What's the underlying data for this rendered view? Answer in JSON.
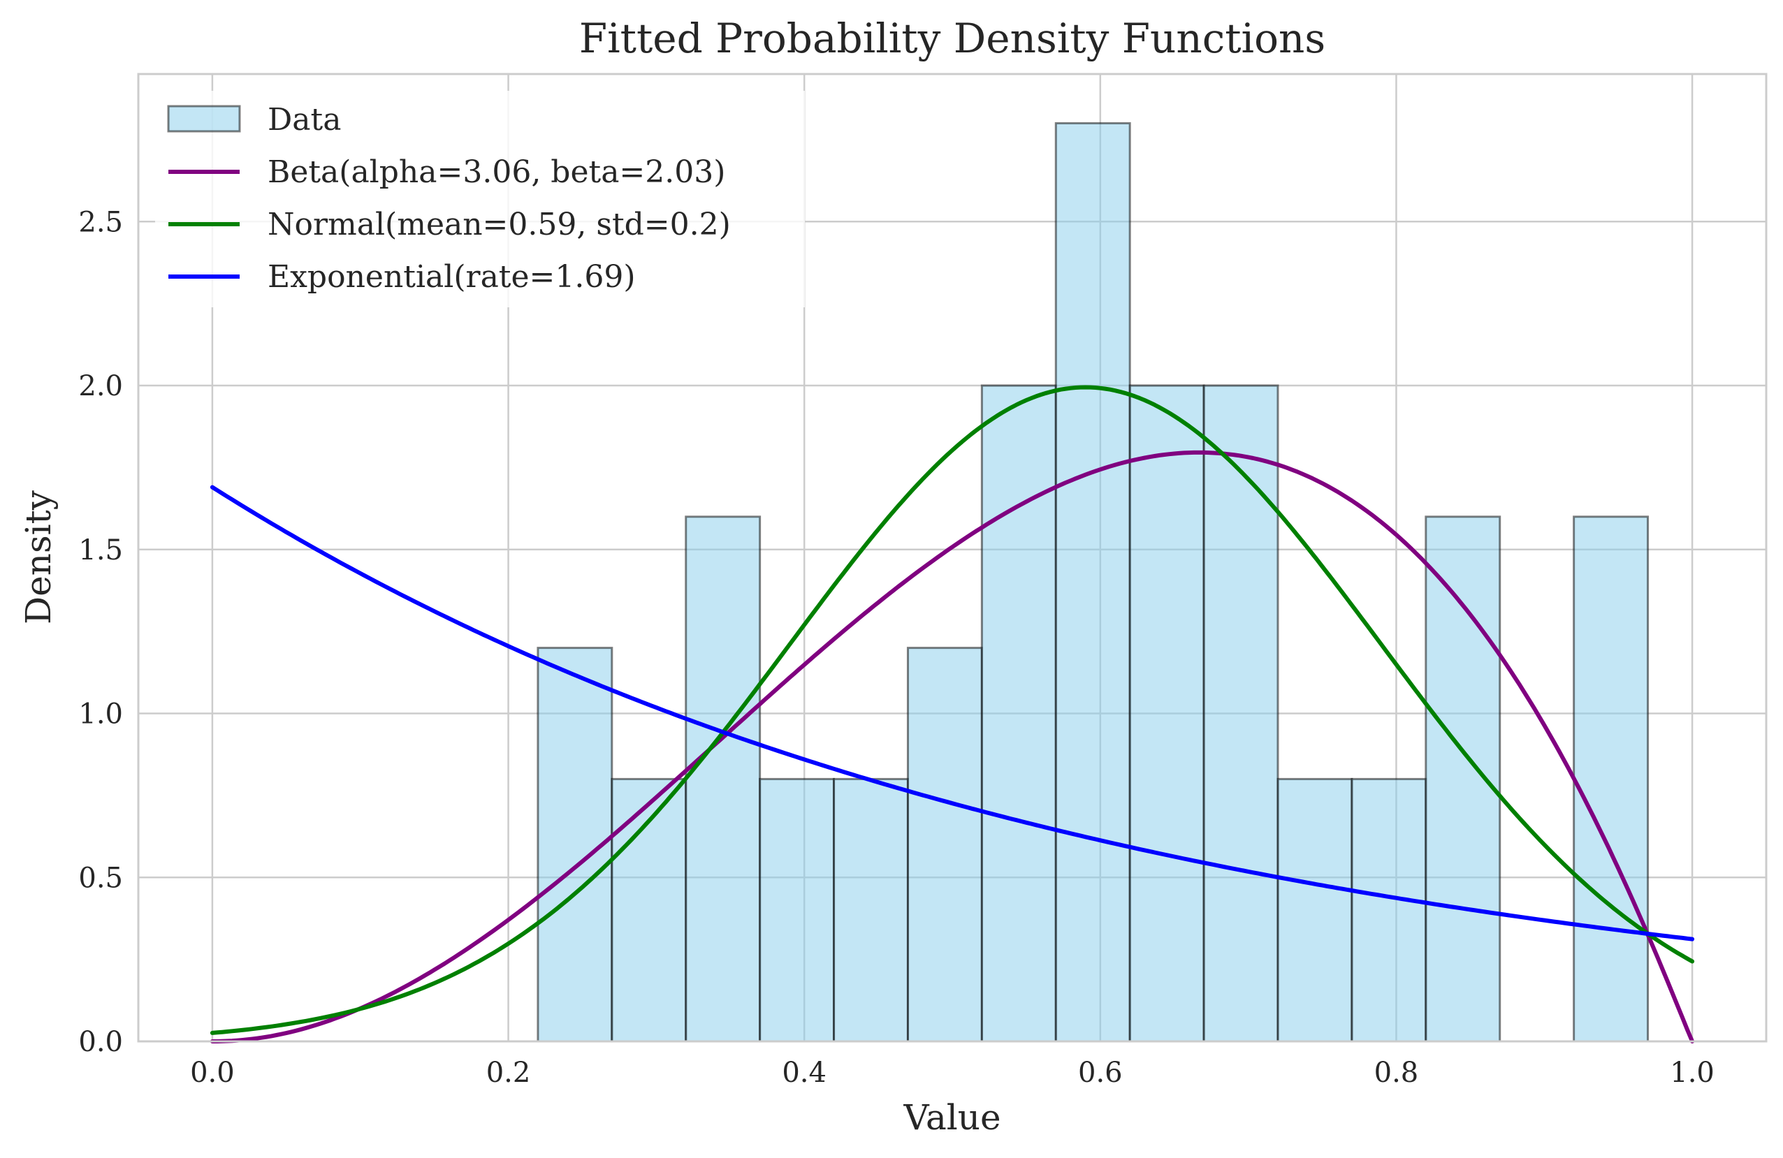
{
  "chart_data": {
    "type": "histogram+line",
    "title": "Fitted Probability Density Functions",
    "xlabel": "Value",
    "ylabel": "Density",
    "xlim": [
      -0.05,
      1.05
    ],
    "ylim": [
      0,
      2.95
    ],
    "xticks": [
      "0.0",
      "0.2",
      "0.4",
      "0.6",
      "0.8",
      "1.0"
    ],
    "xtick_values": [
      0.0,
      0.2,
      0.4,
      0.6,
      0.8,
      1.0
    ],
    "yticks": [
      "0.0",
      "0.5",
      "1.0",
      "1.5",
      "2.0",
      "2.5"
    ],
    "ytick_values": [
      0.0,
      0.5,
      1.0,
      1.5,
      2.0,
      2.5
    ],
    "grid": true,
    "legend_position": "top-left",
    "histogram": {
      "name": "Data",
      "color": "#87CEEB",
      "bins": [
        {
          "x0": 0.22,
          "x1": 0.27,
          "density": 1.2
        },
        {
          "x0": 0.27,
          "x1": 0.32,
          "density": 0.8
        },
        {
          "x0": 0.32,
          "x1": 0.37,
          "density": 1.6
        },
        {
          "x0": 0.37,
          "x1": 0.42,
          "density": 0.8
        },
        {
          "x0": 0.42,
          "x1": 0.47,
          "density": 0.8
        },
        {
          "x0": 0.47,
          "x1": 0.52,
          "density": 1.2
        },
        {
          "x0": 0.52,
          "x1": 0.57,
          "density": 2.0
        },
        {
          "x0": 0.57,
          "x1": 0.62,
          "density": 2.8
        },
        {
          "x0": 0.62,
          "x1": 0.67,
          "density": 2.0
        },
        {
          "x0": 0.67,
          "x1": 0.72,
          "density": 2.0
        },
        {
          "x0": 0.72,
          "x1": 0.77,
          "density": 0.8
        },
        {
          "x0": 0.77,
          "x1": 0.82,
          "density": 0.8
        },
        {
          "x0": 0.82,
          "x1": 0.87,
          "density": 1.6
        },
        {
          "x0": 0.87,
          "x1": 0.92,
          "density": 0.0
        },
        {
          "x0": 0.92,
          "x1": 0.97,
          "density": 1.6
        }
      ]
    },
    "series": [
      {
        "name": "Beta(alpha=3.06, beta=2.03)",
        "color": "#800080",
        "dist": "beta",
        "params": {
          "alpha": 3.06,
          "beta": 2.03
        },
        "x_range": [
          0,
          1
        ]
      },
      {
        "name": "Normal(mean=0.59, std=0.2)",
        "color": "#008000",
        "dist": "normal",
        "params": {
          "mean": 0.59,
          "std": 0.2
        },
        "x_range": [
          0,
          1
        ]
      },
      {
        "name": "Exponential(rate=1.69)",
        "color": "#0000ff",
        "dist": "exponential",
        "params": {
          "rate": 1.69
        },
        "x_range": [
          0,
          1
        ]
      }
    ]
  }
}
